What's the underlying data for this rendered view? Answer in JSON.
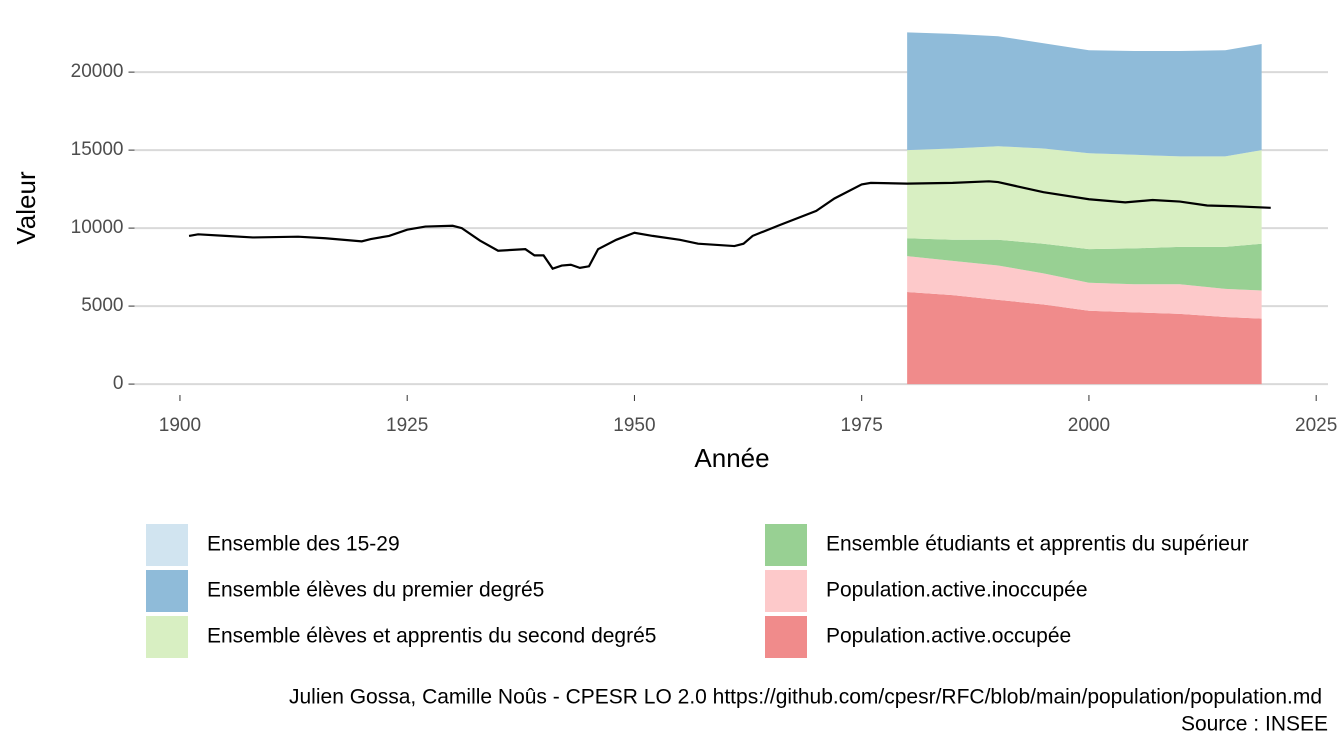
{
  "chart_data": {
    "type": "area",
    "xlabel": "Année",
    "ylabel": "Valeur",
    "caption": "Julien Gossa, Camille Noûs - CPESR LO 2.0 https://github.com/cpesr/RFC/blob/main/population/population.md",
    "source": "Source : INSEE",
    "x": [
      1980,
      1985,
      1990,
      1995,
      2000,
      2005,
      2010,
      2015,
      2019
    ],
    "line": {
      "name": "Ensemble des 15-29",
      "color": "#d1e4f0",
      "line_color": "#000000",
      "x": [
        1901,
        1902,
        1905,
        1908,
        1913,
        1916,
        1920,
        1921,
        1923,
        1925,
        1927,
        1930,
        1931,
        1933,
        1935,
        1938,
        1939,
        1940,
        1941,
        1942,
        1943,
        1944,
        1945,
        1946,
        1948,
        1950,
        1952,
        1955,
        1957,
        1961,
        1962,
        1963,
        1966,
        1970,
        1972,
        1975,
        1976,
        1980,
        1985,
        1989,
        1990,
        1995,
        2000,
        2004,
        2007,
        2010,
        2013,
        2016,
        2020
      ],
      "values": [
        9500,
        9600,
        9500,
        9400,
        9450,
        9350,
        9150,
        9300,
        9500,
        9900,
        10100,
        10150,
        10000,
        9200,
        8550,
        8650,
        8250,
        8250,
        7400,
        7600,
        7650,
        7450,
        7550,
        8650,
        9250,
        9700,
        9500,
        9250,
        9000,
        8850,
        9000,
        9500,
        10200,
        11100,
        11900,
        12800,
        12900,
        12850,
        12900,
        13000,
        12950,
        12300,
        11850,
        11650,
        11800,
        11700,
        11450,
        11400,
        11300
      ]
    },
    "series": [
      {
        "name": "Ensemble élèves du premier degré5",
        "color": "#8fbbd9",
        "values": [
          7550,
          7350,
          7050,
          6750,
          6600,
          6650,
          6750,
          6800,
          6800
        ]
      },
      {
        "name": "Ensemble élèves et apprentis du second degré5",
        "color": "#d8efc2",
        "values": [
          5650,
          5850,
          6000,
          6100,
          6150,
          6000,
          5800,
          5800,
          6000
        ]
      },
      {
        "name": "Ensemble étudiants et apprentis du supérieur",
        "color": "#98d093",
        "values": [
          1150,
          1350,
          1650,
          1900,
          2150,
          2300,
          2400,
          2700,
          3000
        ]
      },
      {
        "name": "Population.active.inoccupée",
        "color": "#fdc9ca",
        "values": [
          2300,
          2200,
          2200,
          2000,
          1800,
          1800,
          1900,
          1800,
          1800
        ]
      },
      {
        "name": "Population.active.occupée",
        "color": "#f08b8b",
        "values": [
          5900,
          5700,
          5400,
          5100,
          4700,
          4600,
          4500,
          4300,
          4200
        ]
      }
    ],
    "xlim": [
      1895,
      2026.3
    ],
    "xticks": [
      1900,
      1925,
      1950,
      1975,
      2000,
      2025
    ],
    "ylim": [
      -700,
      22700
    ],
    "yticks": [
      0,
      5000,
      10000,
      15000,
      20000
    ],
    "grid": true
  }
}
